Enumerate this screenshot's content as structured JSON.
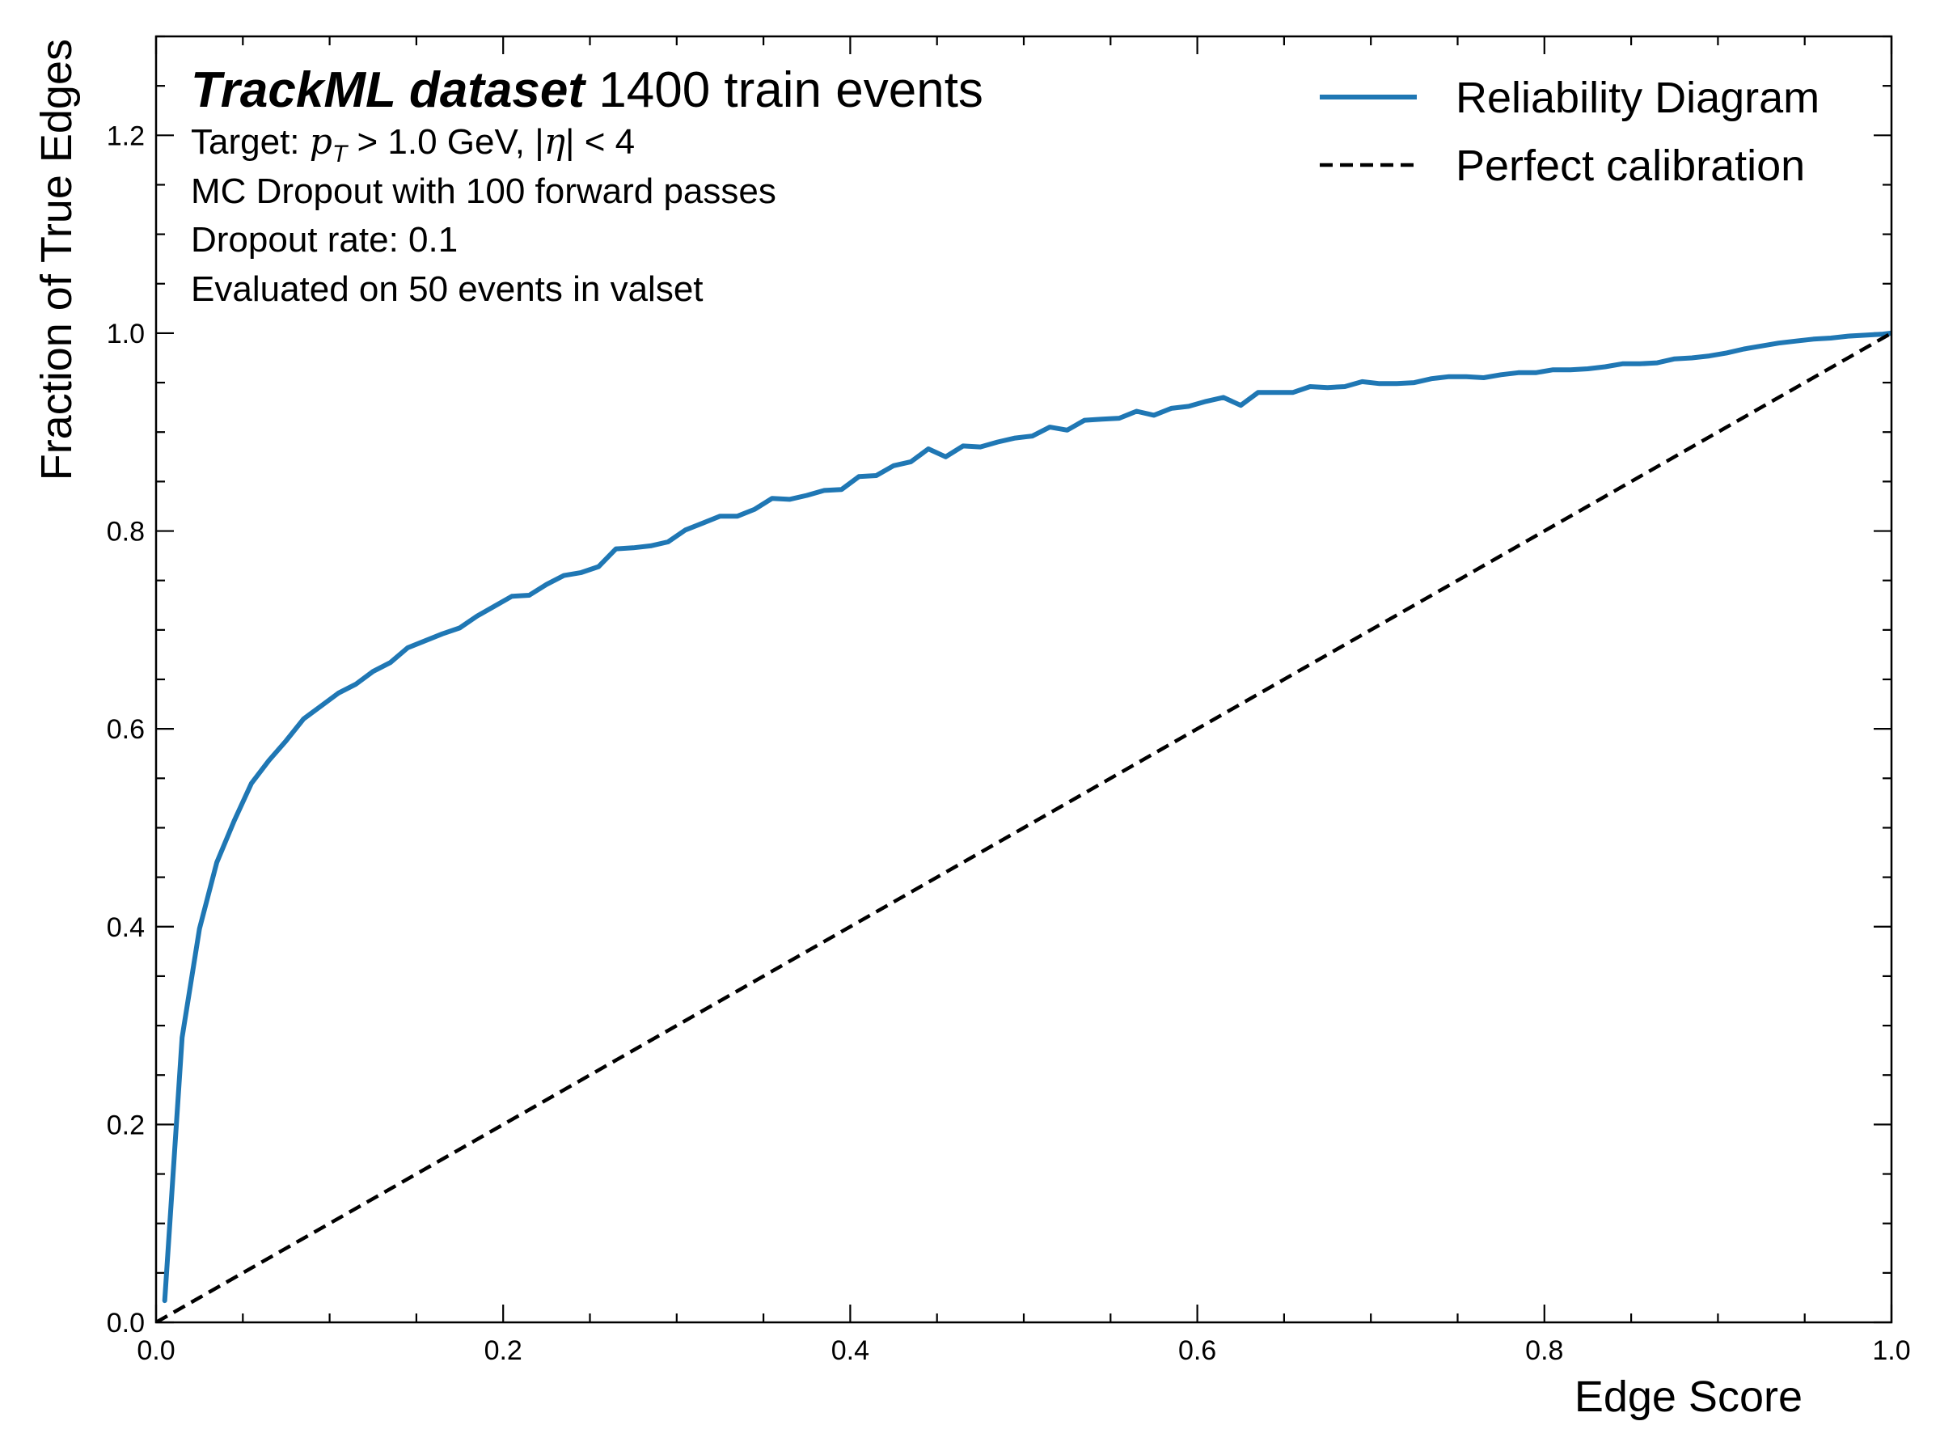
{
  "chart_data": {
    "type": "line",
    "title": "",
    "xlabel": "Edge Score",
    "ylabel": "Fraction of True Edges",
    "xlim": [
      0.0,
      1.0
    ],
    "ylim": [
      0.0,
      1.3
    ],
    "xticks": [
      "0.0",
      "0.2",
      "0.4",
      "0.6",
      "0.8",
      "1.0"
    ],
    "yticks": [
      "0.0",
      "0.2",
      "0.4",
      "0.6",
      "0.8",
      "1.0",
      "1.2"
    ],
    "grid": false,
    "legend_position": "top-right",
    "annotations": {
      "heading_bold": "TrackML dataset",
      "heading_rest": " 1400 train events",
      "target_prefix": "Target: ",
      "target_p": "p",
      "target_sub": "T",
      "target_mid": " > 1.0 GeV, |",
      "target_eta": "η",
      "target_end": "| < 4",
      "line2": "MC Dropout with 100 forward passes",
      "line3": "Dropout rate: 0.1",
      "line4": "Evaluated on 50 events in valset"
    },
    "series": [
      {
        "name": "Reliability Diagram",
        "color": "#1f77b4",
        "style": "solid",
        "x": [
          0.005,
          0.015,
          0.025,
          0.035,
          0.045,
          0.055,
          0.065,
          0.075,
          0.085,
          0.095,
          0.105,
          0.115,
          0.125,
          0.135,
          0.145,
          0.155,
          0.165,
          0.175,
          0.185,
          0.195,
          0.205,
          0.215,
          0.225,
          0.235,
          0.245,
          0.255,
          0.265,
          0.275,
          0.285,
          0.295,
          0.305,
          0.315,
          0.325,
          0.335,
          0.345,
          0.355,
          0.365,
          0.375,
          0.385,
          0.395,
          0.405,
          0.415,
          0.425,
          0.435,
          0.445,
          0.455,
          0.465,
          0.475,
          0.485,
          0.495,
          0.505,
          0.515,
          0.525,
          0.535,
          0.545,
          0.555,
          0.565,
          0.575,
          0.585,
          0.595,
          0.605,
          0.615,
          0.625,
          0.635,
          0.645,
          0.655,
          0.665,
          0.675,
          0.685,
          0.695,
          0.705,
          0.715,
          0.725,
          0.735,
          0.745,
          0.755,
          0.765,
          0.775,
          0.785,
          0.795,
          0.805,
          0.815,
          0.825,
          0.835,
          0.845,
          0.855,
          0.865,
          0.875,
          0.885,
          0.895,
          0.905,
          0.915,
          0.925,
          0.935,
          0.945,
          0.955,
          0.965,
          0.975,
          0.985,
          0.995,
          1.0
        ],
        "values": [
          0.022,
          0.288,
          0.398,
          0.465,
          0.507,
          0.545,
          0.568,
          0.588,
          0.61,
          0.623,
          0.636,
          0.645,
          0.658,
          0.667,
          0.682,
          0.689,
          0.696,
          0.702,
          0.714,
          0.724,
          0.734,
          0.735,
          0.746,
          0.755,
          0.758,
          0.764,
          0.782,
          0.783,
          0.785,
          0.789,
          0.801,
          0.808,
          0.815,
          0.815,
          0.822,
          0.833,
          0.832,
          0.836,
          0.841,
          0.842,
          0.855,
          0.856,
          0.866,
          0.87,
          0.883,
          0.875,
          0.886,
          0.885,
          0.89,
          0.894,
          0.896,
          0.905,
          0.902,
          0.912,
          0.913,
          0.914,
          0.921,
          0.917,
          0.924,
          0.926,
          0.931,
          0.935,
          0.927,
          0.94,
          0.94,
          0.94,
          0.946,
          0.945,
          0.946,
          0.951,
          0.949,
          0.949,
          0.95,
          0.954,
          0.956,
          0.956,
          0.955,
          0.958,
          0.96,
          0.96,
          0.963,
          0.963,
          0.964,
          0.966,
          0.969,
          0.969,
          0.97,
          0.974,
          0.975,
          0.977,
          0.98,
          0.984,
          0.987,
          0.99,
          0.992,
          0.994,
          0.995,
          0.997,
          0.998,
          0.999,
          1.0
        ]
      },
      {
        "name": "Perfect calibration",
        "color": "#000000",
        "style": "dashed",
        "x": [
          0.0,
          1.0
        ],
        "values": [
          0.0,
          1.0
        ]
      }
    ]
  }
}
